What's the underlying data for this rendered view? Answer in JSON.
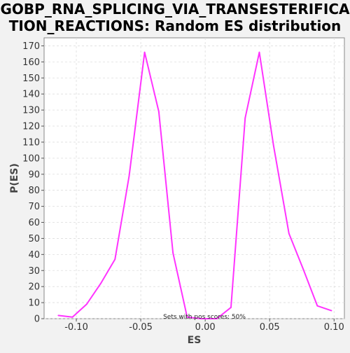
{
  "chart_data": {
    "type": "line",
    "title_lines": [
      "GOBP_RNA_SPLICING_VIA_TRANSESTERIFICA",
      "TION_REACTIONS: Random ES distribution"
    ],
    "xlabel": "ES",
    "ylabel": "P(ES)",
    "xlim": [
      -0.125,
      0.108
    ],
    "ylim": [
      0,
      175
    ],
    "x_ticks": [
      -0.1,
      -0.05,
      0.0,
      0.05,
      0.1
    ],
    "x_tick_labels": [
      "-0.10",
      "-0.05",
      "0.00",
      "0.05",
      "0.10"
    ],
    "y_ticks": [
      0,
      10,
      20,
      30,
      40,
      50,
      60,
      70,
      80,
      90,
      100,
      110,
      120,
      130,
      140,
      150,
      160,
      170
    ],
    "y_tick_labels": [
      "0",
      "10",
      "20",
      "30",
      "40",
      "50",
      "60",
      "70",
      "80",
      "90",
      "100",
      "110",
      "120",
      "130",
      "140",
      "150",
      "160",
      "170"
    ],
    "grid": true,
    "annotation": "Sets with pos scores: 50%",
    "series": [
      {
        "color": "#ff33ff",
        "x": [
          -0.114,
          -0.103,
          -0.092,
          -0.081,
          -0.07,
          -0.059,
          -0.047,
          -0.036,
          -0.025,
          -0.014,
          -0.003,
          0.009,
          0.02,
          0.031,
          0.042,
          0.053,
          0.065,
          0.076,
          0.087,
          0.098
        ],
        "y": [
          2,
          1,
          9,
          22,
          37,
          89,
          166,
          129,
          41,
          1,
          0,
          0,
          7,
          125,
          166,
          108,
          53,
          31,
          8,
          5
        ]
      }
    ]
  }
}
